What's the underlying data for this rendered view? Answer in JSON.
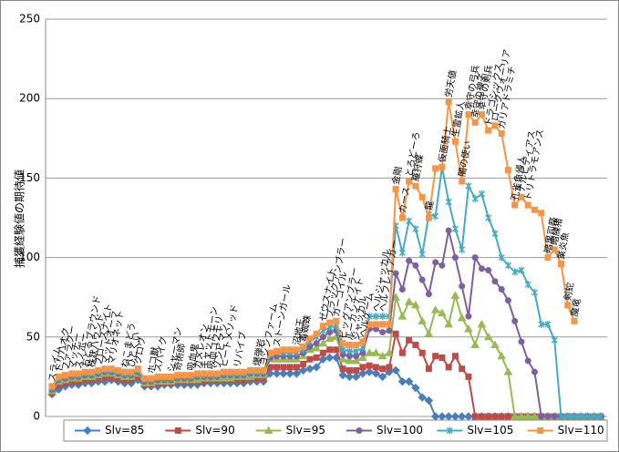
{
  "chart_data": {
    "type": "line",
    "y_label": "捕獲経験値の期待値",
    "ylim": [
      0,
      250
    ],
    "yticks": [
      0,
      50,
      100,
      150,
      200,
      250
    ],
    "grid": true,
    "legend": "bottom",
    "categories": [
      "スライム",
      "ドリハオク",
      "ファラクー",
      "マッチー",
      "スノボー",
      "おどるブラウンド",
      "株状ハウンド",
      "ブローズナイト",
      "マッドオーラ",
      "マリオネット",
      null,
      "ねこまどう",
      "ひとくい",
      "クロウ",
      null,
      "ホコ獣",
      "スパイク",
      null,
      "シャーマン",
      "奇術師",
      null,
      "吸血鬼",
      "カメレオン",
      "キャットモーン",
      "吸血コウモリ",
      "ゾンビマン",
      "ヒートメソッド",
      null,
      "リバイブ",
      null,
      null,
      "爆弾岩",
      "ヨシンファーム",
      null,
      "ストーンガール",
      null,
      null,
      "沼地王",
      "毒蜘蛛",
      null,
      null,
      "ゼウスナイト",
      "ブラックアンブラー",
      "ガーゴイル",
      "ビッグアンブラー",
      "ルーカンナイト",
      "ジャッカル",
      "ヘルゲーム",
      null,
      "ヘルジャッカル",
      "ヘルフレイアガー",
      null,
      "金剛",
      "カース",
      "とろどーろ",
      "羅狩蝶",
      null,
      "龍",
      null,
      "仮面騎士",
      "労天値",
      "生霊鉱人",
      "闇の使い",
      "幸守の弓兵",
      "幸守の神子",
      "幸守の剣兵",
      "ドラゴシックス",
      "ロークウォーリア",
      "ガリアドラミチ",
      null,
      "孔雀魚帰人",
      "ナルビディアス",
      "トリトラモアンス",
      null,
      null,
      "暗黒司祭",
      "暗練猪",
      "業炎魚",
      "剣蛇",
      "魔竜",
      null,
      null,
      null,
      null
    ],
    "series": [
      {
        "name": "Slv=85",
        "color": "#4a7ebb",
        "marker": "diamond",
        "values": [
          14,
          17,
          19,
          20,
          20,
          21,
          21,
          22,
          22,
          23,
          22,
          21,
          21,
          23,
          19,
          19,
          19,
          20,
          20,
          20,
          20,
          20,
          20,
          21,
          21,
          21,
          21,
          21,
          21,
          21,
          22,
          22,
          22,
          27,
          27,
          27,
          27,
          27,
          29,
          30,
          31,
          36,
          37,
          37,
          26,
          25,
          25,
          27,
          28,
          27,
          25,
          28,
          29,
          22,
          22,
          18,
          12,
          10,
          0,
          0,
          0,
          0,
          0,
          0,
          0,
          0,
          0,
          0,
          0,
          0,
          0,
          0,
          0,
          0,
          0,
          0,
          0,
          0,
          0,
          0,
          0,
          0,
          0,
          0
        ]
      },
      {
        "name": "Slv=90",
        "color": "#be4b48",
        "marker": "square",
        "values": [
          15,
          20,
          21,
          22,
          22,
          23,
          23,
          24,
          25,
          25,
          24,
          23,
          23,
          25,
          20,
          20,
          21,
          21,
          21,
          22,
          22,
          22,
          22,
          22,
          23,
          23,
          23,
          23,
          23,
          23,
          24,
          24,
          24,
          31,
          31,
          31,
          31,
          31,
          33,
          36,
          37,
          40,
          42,
          42,
          30,
          29,
          29,
          31,
          32,
          31,
          30,
          31,
          52,
          40,
          48,
          45,
          40,
          30,
          38,
          37,
          31,
          38,
          30,
          25,
          0,
          0,
          0,
          0,
          0,
          0,
          0,
          0,
          0,
          0,
          0,
          0,
          0,
          0,
          0,
          0,
          0,
          0,
          0,
          0
        ]
      },
      {
        "name": "Slv=95",
        "color": "#98b954",
        "marker": "triangle",
        "values": [
          16,
          22,
          23,
          24,
          24,
          25,
          25,
          26,
          27,
          27,
          26,
          25,
          25,
          27,
          21,
          21,
          22,
          22,
          22,
          23,
          23,
          23,
          23,
          24,
          24,
          24,
          24,
          24,
          25,
          25,
          25,
          26,
          26,
          36,
          36,
          36,
          36,
          36,
          38,
          42,
          43,
          46,
          49,
          50,
          36,
          35,
          35,
          37,
          40,
          40,
          38,
          40,
          75,
          63,
          72,
          70,
          60,
          52,
          67,
          65,
          58,
          76,
          62,
          55,
          45,
          58,
          50,
          45,
          38,
          28,
          0,
          0,
          0,
          0,
          0,
          0,
          0,
          0,
          0,
          0,
          0,
          0,
          0,
          0
        ]
      },
      {
        "name": "Slv=100",
        "color": "#7d60a0",
        "marker": "circle",
        "values": [
          17,
          23,
          24,
          25,
          25,
          26,
          26,
          27,
          28,
          28,
          27,
          26,
          26,
          28,
          22,
          22,
          23,
          23,
          23,
          24,
          24,
          24,
          25,
          25,
          25,
          25,
          26,
          26,
          26,
          26,
          27,
          27,
          27,
          37,
          38,
          38,
          38,
          38,
          40,
          44,
          46,
          50,
          53,
          54,
          39,
          38,
          38,
          40,
          55,
          55,
          53,
          54,
          90,
          80,
          98,
          95,
          86,
          77,
          97,
          95,
          117,
          100,
          82,
          63,
          100,
          93,
          92,
          85,
          80,
          73,
          60,
          47,
          35,
          28,
          0,
          0,
          0,
          0,
          0,
          0,
          0,
          0,
          0,
          0
        ]
      },
      {
        "name": "Slv=105",
        "color": "#46aac5",
        "marker": "star",
        "values": [
          18,
          24,
          25,
          26,
          26,
          27,
          27,
          28,
          29,
          29,
          28,
          27,
          27,
          29,
          23,
          23,
          24,
          24,
          24,
          25,
          25,
          25,
          26,
          26,
          26,
          26,
          27,
          27,
          27,
          27,
          28,
          28,
          28,
          39,
          40,
          40,
          40,
          40,
          42,
          47,
          50,
          54,
          56,
          57,
          42,
          41,
          41,
          43,
          63,
          63,
          63,
          63,
          120,
          103,
          123,
          118,
          102,
          127,
          126,
          157,
          135,
          118,
          105,
          145,
          137,
          140,
          125,
          115,
          100,
          95,
          91,
          92,
          83,
          78,
          58,
          58,
          48,
          0,
          0,
          0,
          0,
          0,
          0,
          0
        ]
      },
      {
        "name": "Slv=110",
        "color": "#f69545",
        "marker": "square",
        "values": [
          19,
          25,
          26,
          27,
          27,
          28,
          28,
          29,
          30,
          30,
          29,
          28,
          28,
          30,
          24,
          24,
          25,
          25,
          25,
          26,
          26,
          26,
          27,
          27,
          27,
          27,
          28,
          28,
          28,
          28,
          29,
          29,
          29,
          40,
          41,
          42,
          42,
          42,
          44,
          49,
          52,
          57,
          59,
          60,
          46,
          45,
          45,
          47,
          58,
          58,
          58,
          58,
          143,
          125,
          148,
          145,
          138,
          125,
          156,
          157,
          198,
          173,
          148,
          190,
          185,
          190,
          180,
          183,
          178,
          155,
          133,
          138,
          133,
          130,
          128,
          100,
          105,
          96,
          70,
          60,
          null,
          null,
          null,
          null
        ]
      }
    ]
  }
}
